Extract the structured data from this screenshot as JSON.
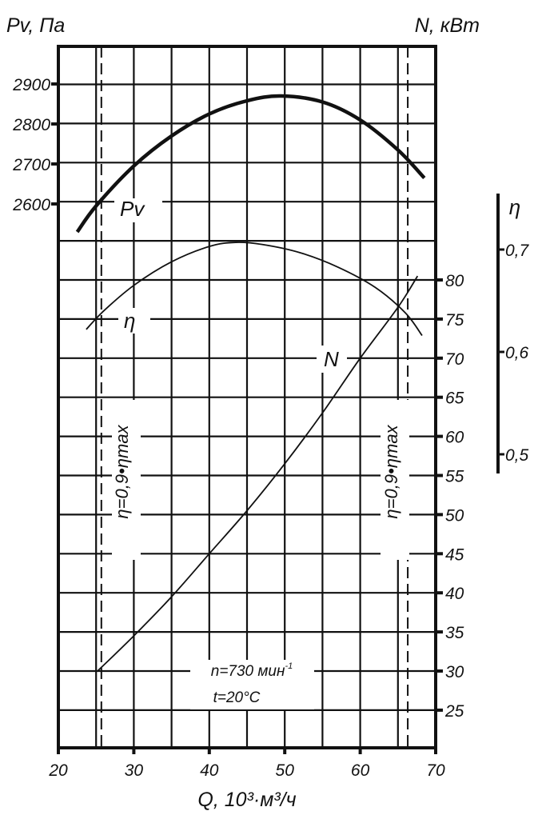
{
  "chart_data": {
    "type": "line",
    "xlabel": "Q, 10³·м³/ч",
    "xlim": [
      20,
      70
    ],
    "xticks": [
      20,
      30,
      40,
      50,
      60,
      70
    ],
    "grid": true,
    "axes": {
      "pv": {
        "label": "Pv, Па",
        "side": "left",
        "ticks": [
          2600,
          2700,
          2800,
          2900
        ]
      },
      "n": {
        "label": "N, кВт",
        "side": "right",
        "ticks": [
          25,
          30,
          35,
          40,
          45,
          50,
          55,
          60,
          65,
          70,
          75,
          80
        ]
      },
      "eta": {
        "label": "η",
        "side": "far-right",
        "ticks": [
          "0,5",
          "0,6",
          "0,7"
        ],
        "tick_values": [
          0.5,
          0.6,
          0.7
        ]
      }
    },
    "series": [
      {
        "name": "Pv",
        "axis": "pv",
        "x": [
          22.5,
          25,
          30,
          35,
          40,
          45,
          49.5,
          55,
          60,
          65,
          68.5
        ],
        "y": [
          2530,
          2595,
          2695,
          2770,
          2825,
          2858,
          2870,
          2855,
          2810,
          2735,
          2665
        ]
      },
      {
        "name": "η",
        "axis": "eta",
        "x": [
          23.7,
          26,
          30,
          35,
          40,
          43.5,
          47,
          52,
          57,
          62,
          66,
          68.2
        ],
        "y": [
          0.622,
          0.64,
          0.665,
          0.688,
          0.703,
          0.707,
          0.705,
          0.697,
          0.683,
          0.663,
          0.638,
          0.616
        ]
      },
      {
        "name": "N",
        "axis": "n",
        "x": [
          25.2,
          30,
          35,
          40,
          45,
          50,
          55,
          60,
          65,
          67.6
        ],
        "y": [
          30,
          34.5,
          39.5,
          45,
          50.5,
          56.5,
          63,
          70,
          76.5,
          80.5
        ]
      }
    ],
    "annotations": {
      "left_limit": {
        "x": 25.7,
        "text": "η=0,9•ηmax"
      },
      "right_limit": {
        "x": 66.3,
        "text": "η=0,9•ηmax"
      },
      "speed": "n=730 мин",
      "speed_sup": "-1",
      "temp": "t=20°C"
    }
  }
}
